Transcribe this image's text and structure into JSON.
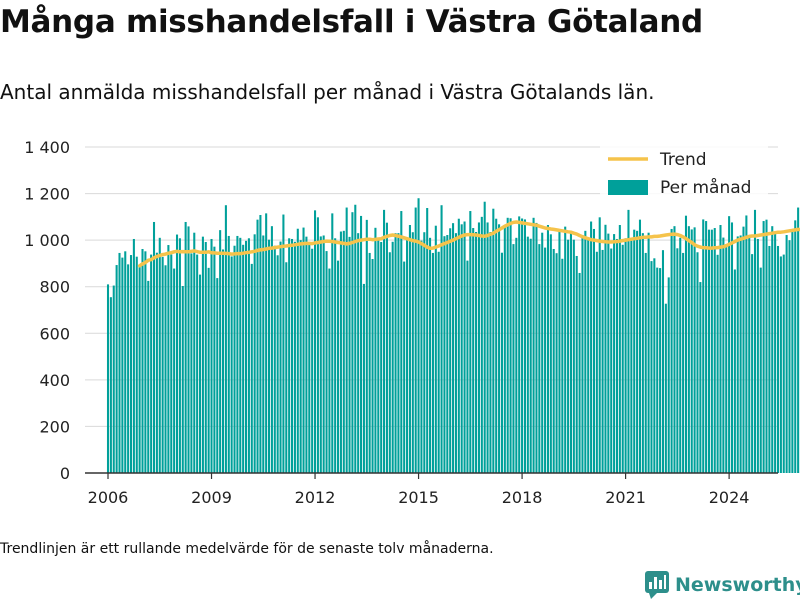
{
  "title": "Många misshandelsfall i Västra Götaland",
  "subtitle": "Antal anmälda misshandelsfall per månad i Västra Götalands län.",
  "footnote": "Trendlinjen är ett rullande medelvärde för de senaste tolv månaderna.",
  "brand": {
    "name": "Newsworthy",
    "color": "#2d8f8b"
  },
  "colors": {
    "bars": "#00a09a",
    "trend": "#f5c34b",
    "axis": "#333333",
    "grid": "#d9d9d9"
  },
  "chart_data": {
    "type": "bar",
    "title": "",
    "xlabel": "",
    "ylabel": "",
    "ylim": [
      0,
      1400
    ],
    "yticks": [
      0,
      200,
      400,
      600,
      800,
      1000,
      1200,
      1400
    ],
    "ytick_labels": [
      "0",
      "200",
      "400",
      "600",
      "800",
      "1 000",
      "1 200",
      "1 400"
    ],
    "xlim": [
      "2005-05",
      "2025-06"
    ],
    "xticks": [
      "2006-01",
      "2009-01",
      "2012-01",
      "2015-01",
      "2018-01",
      "2021-01",
      "2024-01"
    ],
    "xtick_labels": [
      "2006",
      "2009",
      "2012",
      "2015",
      "2018",
      "2021",
      "2024"
    ],
    "legend": {
      "position": "top-right"
    },
    "series": [
      {
        "name": "Per månad",
        "kind": "bar",
        "start": "2006-01",
        "values": [
          810,
          755,
          805,
          893,
          945,
          925,
          952,
          896,
          936,
          1005,
          929,
          887,
          962,
          952,
          825,
          938,
          1078,
          946,
          1010,
          928,
          892,
          979,
          938,
          878,
          1024,
          1008,
          803,
          1078,
          1059,
          943,
          1032,
          938,
          852,
          1015,
          992,
          881,
          1005,
          972,
          837,
          1043,
          960,
          1150,
          1018,
          930,
          976,
          1018,
          1010,
          980,
          997,
          1008,
          898,
          1025,
          1088,
          1108,
          1020,
          1115,
          1002,
          1060,
          976,
          935,
          994,
          1110,
          905,
          1008,
          1005,
          993,
          1049,
          1000,
          1054,
          1015,
          985,
          963,
          1128,
          1098,
          1016,
          1020,
          953,
          878,
          1115,
          1008,
          912,
          1037,
          1040,
          1140,
          1014,
          1120,
          1152,
          1030,
          1104,
          812,
          1087,
          945,
          919,
          1053,
          1010,
          992,
          1130,
          1075,
          948,
          993,
          1030,
          1030,
          1125,
          908,
          1006,
          1065,
          1034,
          1140,
          1180,
          998,
          1034,
          1138,
          1010,
          945,
          1062,
          950,
          1150,
          1017,
          1022,
          1051,
          1073,
          1030,
          1092,
          1068,
          1080,
          912,
          1125,
          1052,
          1035,
          1076,
          1100,
          1165,
          1076,
          1035,
          1135,
          1092,
          1068,
          946,
          1064,
          1096,
          1094,
          983,
          1010,
          1102,
          1093,
          1089,
          1015,
          1006,
          1096,
          1074,
          983,
          1032,
          968,
          1065,
          1025,
          962,
          944,
          1038,
          920,
          1058,
          1002,
          1036,
          1002,
          932,
          859,
          1022,
          1040,
          1003,
          1080,
          1048,
          950,
          1098,
          958,
          1066,
          1028,
          964,
          1026,
          1005,
          1065,
          980,
          1008,
          1130,
          998,
          1045,
          1040,
          1088,
          1030,
          945,
          1032,
          910,
          922,
          882,
          880,
          957,
          727,
          840,
          1048,
          1060,
          965,
          1010,
          945,
          1105,
          1060,
          1046,
          1055,
          948,
          820,
          1089,
          1082,
          1045,
          1045,
          1052,
          937,
          1065,
          1011,
          972,
          1103,
          1076,
          874,
          1016,
          1020,
          1058,
          1106,
          1020,
          940,
          1130,
          1005,
          882,
          1082,
          1088,
          975,
          1060,
          1028,
          975,
          930,
          938,
          1022,
          1000,
          1040,
          1085,
          1140,
          1032,
          1060,
          1055,
          1030,
          990,
          1085,
          960,
          1105,
          1115,
          1068,
          976,
          1095,
          930,
          893,
          1030,
          1110,
          1018,
          1002,
          1050,
          1040,
          1100,
          1090,
          1120,
          1000,
          943,
          1075,
          1010,
          1045,
          1080,
          1038,
          1000,
          1092,
          1012,
          1000,
          1000,
          1030,
          938,
          936,
          940,
          1008,
          1010,
          1000,
          1020,
          1030,
          1035,
          1270,
          1140
        ]
      },
      {
        "name": "Trend",
        "kind": "line",
        "start": "2006-12",
        "values": [
          890,
          898,
          904,
          914,
          916,
          924,
          930,
          934,
          938,
          940,
          944,
          946,
          950,
          952,
          950,
          951,
          950,
          950,
          952,
          954,
          951,
          948,
          948,
          948,
          950,
          946,
          945,
          944,
          944,
          944,
          943,
          942,
          940,
          941,
          942,
          942,
          944,
          946,
          948,
          950,
          952,
          956,
          958,
          960,
          962,
          965,
          966,
          968,
          970,
          972,
          974,
          975,
          977,
          978,
          980,
          982,
          984,
          985,
          986,
          986,
          985,
          988,
          990,
          992,
          994,
          996,
          995,
          994,
          992,
          990,
          988,
          986,
          984,
          986,
          990,
          994,
          998,
          1000,
          1002,
          1004,
          1004,
          1002,
          1003,
          1005,
          1006,
          1012,
          1016,
          1020,
          1022,
          1020,
          1017,
          1014,
          1010,
          1006,
          1002,
          998,
          996,
          992,
          985,
          978,
          970,
          965,
          966,
          970,
          975,
          980,
          985,
          990,
          995,
          1000,
          1006,
          1012,
          1018,
          1022,
          1024,
          1024,
          1023,
          1022,
          1020,
          1018,
          1017,
          1020,
          1025,
          1030,
          1038,
          1045,
          1052,
          1060,
          1066,
          1072,
          1076,
          1078,
          1076,
          1074,
          1072,
          1070,
          1068,
          1066,
          1064,
          1060,
          1056,
          1052,
          1050,
          1048,
          1046,
          1044,
          1042,
          1040,
          1038,
          1036,
          1034,
          1030,
          1026,
          1020,
          1015,
          1010,
          1006,
          1002,
          1000,
          998,
          996,
          994,
          993,
          992,
          992,
          993,
          994,
          996,
          998,
          1000,
          1002,
          1004,
          1006,
          1008,
          1010,
          1012,
          1012,
          1014,
          1014,
          1016,
          1016,
          1018,
          1020,
          1022,
          1024,
          1025,
          1026,
          1024,
          1020,
          1014,
          1006,
          998,
          990,
          980,
          974,
          970,
          968,
          967,
          966,
          966,
          967,
          968,
          970,
          972,
          976,
          982,
          988,
          994,
          1000,
          1004,
          1008,
          1012,
          1016,
          1018,
          1018,
          1020,
          1022,
          1024,
          1026,
          1028,
          1030,
          1032,
          1034,
          1034,
          1036,
          1038,
          1040,
          1042,
          1044,
          1046,
          1045,
          1044,
          1040,
          1036,
          1032,
          1026,
          1020,
          1014,
          1010,
          1010,
          1012,
          1018,
          1026,
          1038,
          1048
        ]
      }
    ]
  }
}
